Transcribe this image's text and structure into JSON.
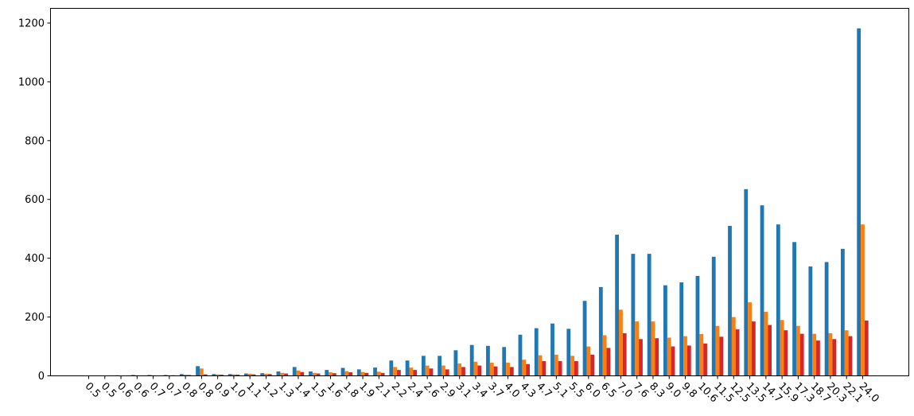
{
  "chart_data": {
    "type": "bar",
    "title": "",
    "xlabel": "",
    "ylabel": "",
    "ylim": [
      0,
      1250
    ],
    "yticks": [
      0,
      200,
      400,
      600,
      800,
      1000,
      1200
    ],
    "grid": false,
    "legend": "none",
    "categories": [
      "0.5",
      "0.5",
      "0.6",
      "0.6",
      "0.7",
      "0.7",
      "0.8",
      "0.8",
      "0.9",
      "1.0",
      "1.1",
      "1.2",
      "1.3",
      "1.4",
      "1.5",
      "1.6",
      "1.8",
      "1.9",
      "2.1",
      "2.2",
      "2.4",
      "2.6",
      "2.9",
      "3.1",
      "3.4",
      "3.7",
      "4.0",
      "4.3",
      "4.7",
      "5.1",
      "5.5",
      "6.0",
      "6.5",
      "7.0",
      "7.6",
      "8.3",
      "9.0",
      "9.8",
      "10.6",
      "11.5",
      "12.5",
      "13.5",
      "14.7",
      "15.9",
      "17.3",
      "18.7",
      "20.3",
      "22.1",
      "24.0"
    ],
    "series": [
      {
        "color": "#1f77b4",
        "values": [
          1,
          1,
          2,
          3,
          3,
          3,
          6,
          33,
          6,
          6,
          8,
          9,
          15,
          30,
          15,
          20,
          27,
          22,
          28,
          52,
          52,
          68,
          68,
          87,
          105,
          102,
          98,
          140,
          162,
          178,
          160,
          255,
          302,
          480,
          415,
          415,
          308,
          318,
          340,
          405,
          510,
          635,
          580,
          515,
          455,
          372,
          387,
          432,
          1182
        ]
      },
      {
        "color": "#ff7f0e",
        "values": [
          1,
          1,
          1,
          2,
          2,
          2,
          4,
          25,
          5,
          5,
          7,
          7,
          10,
          18,
          10,
          12,
          16,
          13,
          14,
          30,
          28,
          35,
          35,
          42,
          48,
          45,
          45,
          55,
          70,
          72,
          68,
          100,
          138,
          225,
          185,
          185,
          130,
          135,
          142,
          170,
          200,
          250,
          218,
          190,
          170,
          143,
          145,
          155,
          515
        ]
      },
      {
        "color": "#d62728",
        "values": [
          1,
          1,
          1,
          1,
          1,
          2,
          3,
          5,
          4,
          4,
          5,
          6,
          8,
          13,
          8,
          9,
          12,
          10,
          10,
          20,
          20,
          25,
          22,
          30,
          35,
          32,
          30,
          40,
          50,
          50,
          50,
          72,
          95,
          145,
          125,
          128,
          100,
          103,
          110,
          133,
          158,
          185,
          173,
          155,
          143,
          120,
          125,
          135,
          188
        ]
      }
    ]
  }
}
